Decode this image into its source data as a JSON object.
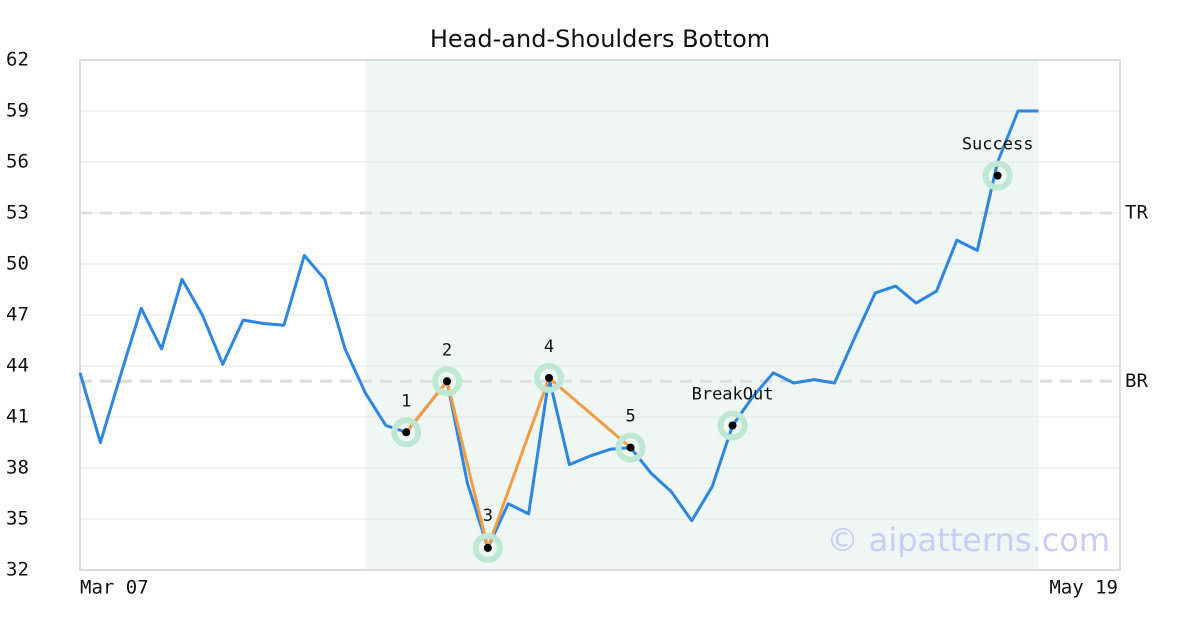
{
  "chart_data": {
    "type": "line",
    "title": "Head-and-Shoulders Bottom",
    "categories": [
      "Mar 07",
      null,
      null,
      null,
      null,
      null,
      null,
      null,
      null,
      null,
      null,
      null,
      null,
      null,
      null,
      null,
      null,
      null,
      null,
      null,
      null,
      null,
      null,
      null,
      null,
      null,
      null,
      null,
      null,
      null,
      null,
      null,
      null,
      null,
      null,
      null,
      null,
      null,
      null,
      null,
      null,
      null,
      null,
      null,
      null,
      null,
      null,
      null,
      null,
      null,
      null,
      "May 19"
    ],
    "series": [
      {
        "color": "#2e86e0",
        "values": [
          43.6,
          39.5,
          43.5,
          47.4,
          45.0,
          49.1,
          47.0,
          44.1,
          46.7,
          46.5,
          46.4,
          50.5,
          49.1,
          45.0,
          42.4,
          40.5,
          40.1,
          41.6,
          43.1,
          37.1,
          33.3,
          35.9,
          35.3,
          43.3,
          38.2,
          38.7,
          39.1,
          39.2,
          37.7,
          36.6,
          34.9,
          36.9,
          40.5,
          42.2,
          43.6,
          43.0,
          43.2,
          43.0,
          45.7,
          48.3,
          48.7,
          47.7,
          48.4,
          51.4,
          50.8,
          56.0,
          59.0,
          59.0,
          null,
          null,
          null,
          null
        ]
      }
    ],
    "ylim": [
      32,
      62
    ],
    "yticks": [
      32,
      35,
      38,
      41,
      44,
      47,
      50,
      53,
      56,
      59,
      62
    ],
    "grid": true,
    "highlight_range": [
      14,
      47
    ],
    "highlight_color": "#eef7f3",
    "pattern_color": "#f39c45",
    "pattern_points": [
      {
        "label": "1",
        "x": 16,
        "y": 40.1
      },
      {
        "label": "2",
        "x": 18,
        "y": 43.1
      },
      {
        "label": "3",
        "x": 20,
        "y": 33.3
      },
      {
        "label": "4",
        "x": 23,
        "y": 43.3
      },
      {
        "label": "5",
        "x": 27,
        "y": 39.2
      }
    ],
    "events": [
      {
        "label": "BreakOut",
        "x": 32,
        "y": 40.5
      },
      {
        "label": "Success",
        "x": 45,
        "y": 55.2
      }
    ],
    "reference_lines": [
      {
        "label": "TR",
        "value": 53
      },
      {
        "label": "BR",
        "value": 43.1
      }
    ],
    "watermark": "© aipatterns.com"
  }
}
